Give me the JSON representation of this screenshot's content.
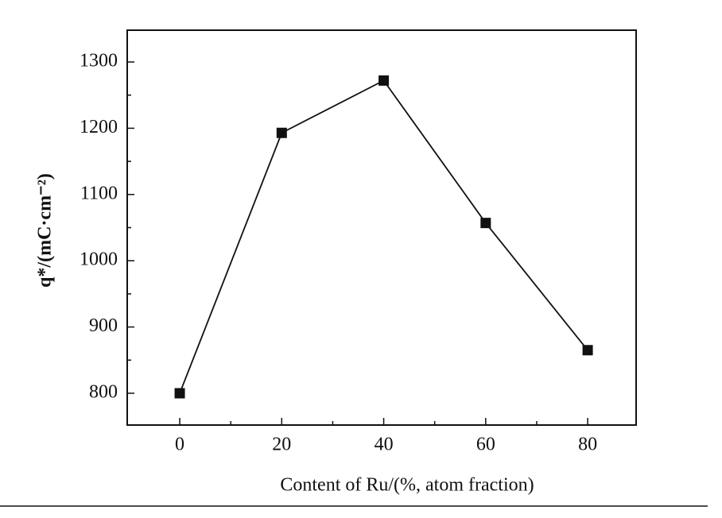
{
  "chart_data": {
    "type": "line",
    "x_label": "Content of Ru/(%, atom fraction)",
    "y_label": "q*/(mC·cm⁻²)",
    "x": [
      0,
      20,
      40,
      60,
      80
    ],
    "series": [
      {
        "color": "#111111",
        "values": [
          800,
          1193,
          1272,
          1057,
          865
        ]
      }
    ],
    "xlim": [
      -10.3,
      89.5
    ],
    "xticks": [
      0,
      20,
      40,
      60,
      80
    ],
    "ylim": [
      752,
      1348
    ],
    "yticks": [
      800,
      900,
      1000,
      1100,
      1200,
      1300
    ],
    "grid": false,
    "marker": "square"
  }
}
